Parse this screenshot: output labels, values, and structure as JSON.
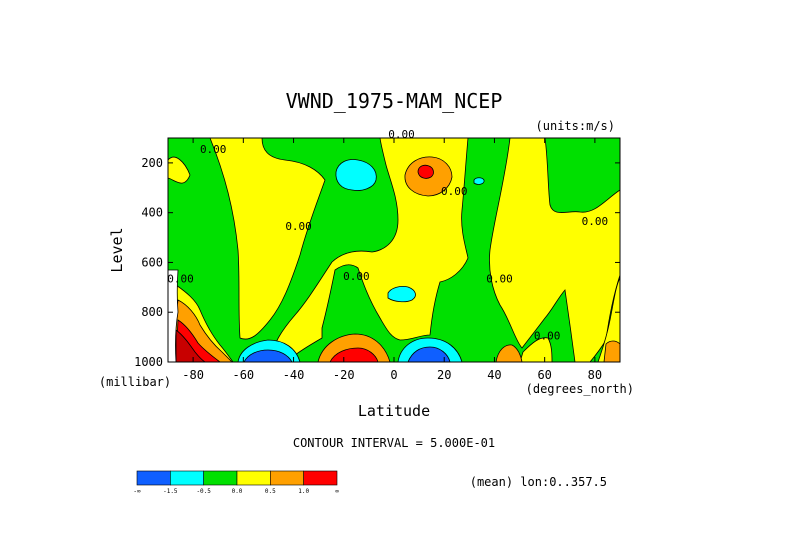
{
  "chart_data": {
    "type": "heatmap",
    "title": "VWND_1975-MAM_NCEP",
    "units": "(units:m/s)",
    "xlabel": "Latitude",
    "ylabel": "Level",
    "x_units": "(degrees_north)",
    "y_units": "(millibar)",
    "xlim": [
      -90,
      90
    ],
    "ylim": [
      1000,
      100
    ],
    "x_ticks": [
      {
        "value": -80,
        "label": "-80"
      },
      {
        "value": -60,
        "label": "-60"
      },
      {
        "value": -40,
        "label": "-40"
      },
      {
        "value": -20,
        "label": "-20"
      },
      {
        "value": 0,
        "label": "0"
      },
      {
        "value": 20,
        "label": "20"
      },
      {
        "value": 40,
        "label": "40"
      },
      {
        "value": 60,
        "label": "60"
      },
      {
        "value": 80,
        "label": "80"
      }
    ],
    "y_ticks": [
      {
        "value": 200,
        "label": "200"
      },
      {
        "value": 400,
        "label": "400"
      },
      {
        "value": 600,
        "label": "600"
      },
      {
        "value": 800,
        "label": "800"
      },
      {
        "value": 1000,
        "label": "1000"
      }
    ],
    "contour_interval_text": "CONTOUR INTERVAL = 5.000E-01",
    "contour_labels": [
      {
        "text": "0.00",
        "lat": 3,
        "lev": 100
      },
      {
        "text": "0.00",
        "lat": -72,
        "lev": 160
      },
      {
        "text": "0.00",
        "lat": 24,
        "lev": 330
      },
      {
        "text": "0.00",
        "lat": -38,
        "lev": 470
      },
      {
        "text": "0.00",
        "lat": 80,
        "lev": 450
      },
      {
        "text": "0.00",
        "lat": -85,
        "lev": 680
      },
      {
        "text": "0.00",
        "lat": -15,
        "lev": 670
      },
      {
        "text": "0.00",
        "lat": 42,
        "lev": 680
      },
      {
        "text": "0.00",
        "lat": 61,
        "lev": 910
      }
    ],
    "colorbar": {
      "levels": [
        "-1.5",
        "-0.5",
        "0.0",
        "0.5",
        "1.0"
      ],
      "ends": [
        "-∞",
        "∞"
      ],
      "colors": [
        "#0f5fff",
        "#00ffff",
        "#00e000",
        "#ffff00",
        "#ffa000",
        "#ff0000"
      ]
    },
    "region_colors": {
      "very_negative": "#0f5fff",
      "negative": "#00ffff",
      "near_zero": "#00e000",
      "positive": "#ffff00",
      "more_positive": "#ffa000",
      "very_positive": "#ff0000",
      "strongest": "#c80000"
    },
    "footer_note": "(mean) lon:0..357.5"
  }
}
